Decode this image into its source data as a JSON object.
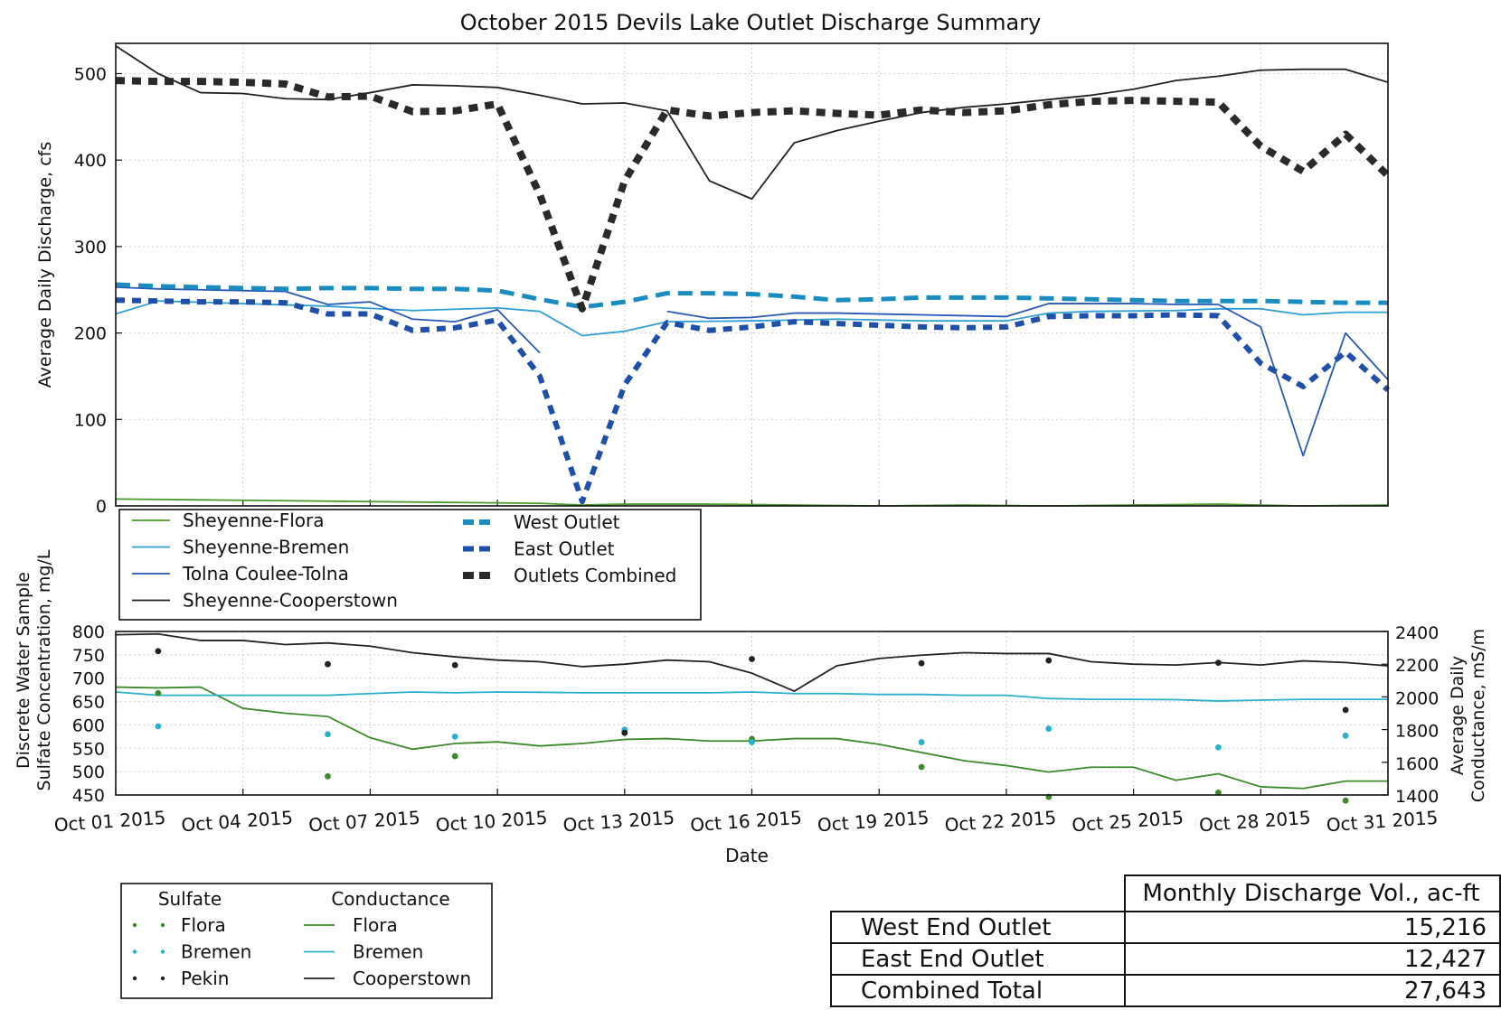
{
  "chart_data": [
    {
      "type": "line",
      "title": "October 2015 Devils Lake Outlet Discharge Summary",
      "ylabel": "Average Daily Discharge, cfs",
      "ylim": [
        0,
        535
      ],
      "xlim": [
        1,
        31
      ],
      "grid": true,
      "legend_position": "bottom-left",
      "y_ticks": [
        "0",
        "100",
        "200",
        "300",
        "400",
        "500"
      ],
      "x_ticks_shared": [
        "Oct 01 2015",
        "Oct 04 2015",
        "Oct 07 2015",
        "Oct 10 2015",
        "Oct 13 2015",
        "Oct 16 2015",
        "Oct 19 2015",
        "Oct 22 2015",
        "Oct 25 2015",
        "Oct 28 2015",
        "Oct 31 2015"
      ],
      "series": [
        {
          "name": "Sheyenne-Flora",
          "color": "#4a9a2a",
          "style": "solid",
          "x": [
            1,
            3,
            5,
            7,
            9,
            11,
            12,
            13,
            15,
            17,
            19,
            21,
            23,
            25,
            27,
            29,
            31
          ],
          "y": [
            8,
            7,
            6,
            5,
            4,
            3,
            1,
            2,
            2,
            1,
            0,
            1,
            0,
            1,
            2,
            0,
            1
          ]
        },
        {
          "name": "Sheyenne-Bremen",
          "color": "#2f9fd4",
          "style": "solid",
          "x": [
            1,
            2,
            4,
            6,
            8,
            10,
            11,
            12,
            13,
            14,
            16,
            18,
            20,
            22,
            23,
            24,
            26,
            27,
            28,
            29,
            30,
            31
          ],
          "y": [
            222,
            237,
            234,
            231,
            226,
            229,
            225,
            197,
            202,
            213,
            214,
            216,
            214,
            214,
            223,
            225,
            226,
            228,
            228,
            221,
            224,
            224
          ]
        },
        {
          "name": "Tolna Coulee-Tolna",
          "color": "#2858b8",
          "style": "solid",
          "segments": [
            {
              "x": [
                1,
                2,
                3,
                4,
                5,
                6,
                7,
                8,
                9,
                10,
                11
              ],
              "y": [
                253,
                251,
                250,
                249,
                248,
                233,
                236,
                216,
                213,
                227,
                177
              ]
            },
            {
              "x": [
                14,
                15,
                16,
                17,
                18,
                19,
                20,
                21,
                22,
                23,
                24,
                25,
                26,
                27,
                28,
                29,
                30,
                31
              ],
              "y": [
                225,
                217,
                218,
                223,
                223,
                222,
                221,
                220,
                219,
                234,
                234,
                234,
                233,
                233,
                207,
                58,
                200,
                146
              ]
            }
          ]
        },
        {
          "name": "Sheyenne-Cooperstown",
          "color": "#222222",
          "style": "solid",
          "x": [
            1,
            2,
            3,
            4,
            5,
            6,
            7,
            8,
            9,
            10,
            11,
            12,
            13,
            14,
            15,
            16,
            17,
            18,
            19,
            20,
            21,
            22,
            23,
            24,
            25,
            26,
            27,
            28,
            29,
            30,
            31
          ],
          "y": [
            532,
            500,
            478,
            477,
            471,
            470,
            478,
            487,
            486,
            484,
            475,
            465,
            466,
            457,
            376,
            355,
            420,
            434,
            445,
            455,
            461,
            465,
            470,
            475,
            482,
            492,
            497,
            504,
            505,
            505,
            490
          ]
        },
        {
          "name": "West Outlet",
          "color": "#1a8cc0",
          "style": "dashed",
          "x": [
            1,
            2,
            3,
            4,
            5,
            6,
            7,
            8,
            9,
            10,
            11,
            12,
            13,
            14,
            15,
            16,
            17,
            18,
            19,
            20,
            21,
            22,
            23,
            24,
            25,
            26,
            27,
            28,
            29,
            30,
            31
          ],
          "y": [
            256,
            254,
            253,
            252,
            251,
            252,
            252,
            251,
            251,
            249,
            239,
            230,
            236,
            246,
            246,
            245,
            242,
            238,
            239,
            241,
            241,
            241,
            240,
            239,
            238,
            237,
            237,
            237,
            236,
            235,
            235
          ]
        },
        {
          "name": "East Outlet",
          "color": "#1f4fa8",
          "style": "dashed",
          "x": [
            1,
            2,
            3,
            4,
            5,
            6,
            7,
            8,
            9,
            10,
            11,
            12,
            13,
            14,
            15,
            16,
            17,
            18,
            19,
            20,
            21,
            22,
            23,
            24,
            25,
            26,
            27,
            28,
            29,
            30,
            31
          ],
          "y": [
            238,
            237,
            236,
            236,
            235,
            222,
            222,
            203,
            206,
            215,
            150,
            5,
            140,
            212,
            203,
            207,
            213,
            211,
            209,
            207,
            206,
            207,
            219,
            220,
            220,
            221,
            220,
            165,
            138,
            178,
            134
          ]
        },
        {
          "name": "Outlets Combined",
          "color": "#2a2a2a",
          "style": "dashed",
          "x": [
            1,
            2,
            3,
            4,
            5,
            6,
            7,
            8,
            9,
            10,
            11,
            12,
            13,
            14,
            15,
            16,
            17,
            18,
            19,
            20,
            21,
            22,
            23,
            24,
            25,
            26,
            27,
            28,
            29,
            30,
            31
          ],
          "y": [
            492,
            491,
            491,
            490,
            488,
            473,
            474,
            456,
            457,
            465,
            360,
            228,
            376,
            458,
            451,
            455,
            457,
            454,
            452,
            458,
            455,
            457,
            464,
            468,
            469,
            468,
            467,
            416,
            387,
            430,
            382
          ]
        }
      ]
    },
    {
      "type": "line",
      "ylabel": "Discrete Water Sample Sulfate Concentration, mg/L",
      "ylabel_right": "Average Daily Conductance, mS/m",
      "xlabel": "Date",
      "ylim": [
        450,
        800
      ],
      "ylim_right": [
        1400,
        2400
      ],
      "xlim": [
        1,
        31
      ],
      "grid": true,
      "y_ticks": [
        "450",
        "500",
        "550",
        "600",
        "650",
        "700",
        "750",
        "800"
      ],
      "y_ticks_right": [
        "1400",
        "1600",
        "1800",
        "2000",
        "2200",
        "2400"
      ],
      "x_ticks": [
        "Oct 01 2015",
        "Oct 04 2015",
        "Oct 07 2015",
        "Oct 10 2015",
        "Oct 13 2015",
        "Oct 16 2015",
        "Oct 19 2015",
        "Oct 22 2015",
        "Oct 25 2015",
        "Oct 28 2015",
        "Oct 31 2015"
      ],
      "sulfate_points": [
        {
          "name": "Flora",
          "color": "#3c8a2c",
          "x": [
            2,
            6,
            9,
            13,
            16,
            20,
            23,
            27,
            30
          ],
          "y": [
            668,
            490,
            533,
            587,
            570,
            510,
            446,
            455,
            438
          ]
        },
        {
          "name": "Bremen",
          "color": "#2ab0cc",
          "x": [
            2,
            6,
            9,
            13,
            16,
            20,
            23,
            27,
            30
          ],
          "y": [
            597,
            580,
            575,
            590,
            563,
            563,
            592,
            552,
            577
          ]
        },
        {
          "name": "Pekin",
          "color": "#222222",
          "x": [
            2,
            6,
            9,
            13,
            16,
            20,
            23,
            27,
            30
          ],
          "y": [
            758,
            730,
            728,
            583,
            741,
            732,
            738,
            733,
            632
          ]
        }
      ],
      "conductance_series": [
        {
          "name": "Flora",
          "color": "#3c8a2c",
          "x": [
            1,
            2,
            3,
            4,
            5,
            6,
            7,
            8,
            9,
            10,
            11,
            12,
            13,
            14,
            15,
            16,
            17,
            18,
            19,
            20,
            21,
            22,
            23,
            24,
            25,
            26,
            27,
            28,
            29,
            30,
            31
          ],
          "y": [
            2060,
            2055,
            2060,
            1930,
            1900,
            1880,
            1750,
            1680,
            1715,
            1725,
            1700,
            1715,
            1740,
            1745,
            1730,
            1730,
            1745,
            1745,
            1710,
            1660,
            1610,
            1580,
            1540,
            1570,
            1570,
            1490,
            1530,
            1450,
            1440,
            1485,
            1485
          ]
        },
        {
          "name": "Bremen",
          "color": "#2ab0cc",
          "x": [
            1,
            2,
            3,
            4,
            5,
            6,
            7,
            8,
            9,
            10,
            11,
            12,
            13,
            14,
            15,
            16,
            17,
            18,
            19,
            20,
            21,
            22,
            23,
            24,
            25,
            26,
            27,
            28,
            29,
            30,
            31
          ],
          "y": [
            2030,
            2010,
            2010,
            2010,
            2010,
            2010,
            2020,
            2030,
            2025,
            2030,
            2028,
            2025,
            2025,
            2025,
            2025,
            2030,
            2020,
            2020,
            2015,
            2015,
            2010,
            2010,
            1990,
            1985,
            1985,
            1983,
            1975,
            1980,
            1985,
            1985,
            1985
          ]
        },
        {
          "name": "Cooperstown",
          "color": "#222222",
          "x": [
            1,
            2,
            3,
            4,
            5,
            6,
            7,
            8,
            9,
            10,
            11,
            12,
            13,
            14,
            15,
            16,
            17,
            18,
            19,
            20,
            21,
            22,
            23,
            24,
            25,
            26,
            27,
            28,
            29,
            30,
            31
          ],
          "y": [
            2380,
            2385,
            2345,
            2345,
            2320,
            2330,
            2310,
            2270,
            2245,
            2225,
            2215,
            2185,
            2200,
            2225,
            2215,
            2145,
            2035,
            2190,
            2235,
            2255,
            2270,
            2265,
            2265,
            2215,
            2200,
            2195,
            2210,
            2195,
            2220,
            2210,
            2190
          ]
        }
      ]
    }
  ],
  "legend_top": {
    "col1": [
      "Sheyenne-Flora",
      "Sheyenne-Bremen",
      "Tolna Coulee-Tolna",
      "Sheyenne-Cooperstown"
    ],
    "col2": [
      "West Outlet",
      "East Outlet",
      "Outlets Combined"
    ]
  },
  "legend_bottom": {
    "sulfate_title": "Sulfate",
    "conductance_title": "Conductance",
    "sulfate_items": [
      "Flora",
      "Bremen",
      "Pekin"
    ],
    "conductance_items": [
      "Flora",
      "Bremen",
      "Cooperstown"
    ]
  },
  "volume_table": {
    "header": "Monthly Discharge Vol., ac-ft",
    "rows": [
      {
        "label": "West End Outlet",
        "value": "15,216"
      },
      {
        "label": "East End Outlet",
        "value": "12,427"
      },
      {
        "label": "Combined Total",
        "value": "27,643"
      }
    ]
  }
}
